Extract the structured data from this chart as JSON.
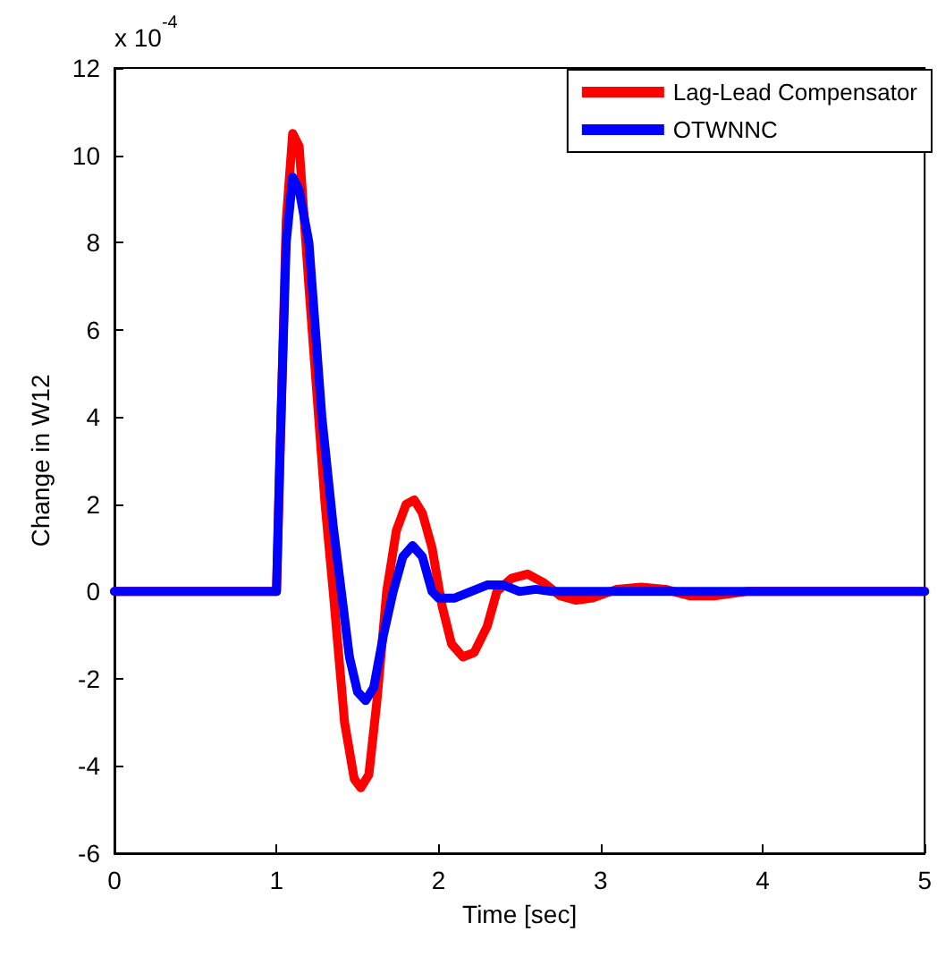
{
  "chart_data": {
    "type": "line",
    "xlabel": "Time [sec]",
    "ylabel": "Change in W12",
    "annotations": [
      "x 10$^{-4}$"
    ],
    "xlim": [
      0,
      5
    ],
    "xticks": [
      0,
      1,
      2,
      3,
      4,
      5
    ],
    "ylim": [
      -6,
      12
    ],
    "yticks": [
      -6,
      -4,
      -2,
      0,
      2,
      4,
      6,
      8,
      10,
      12
    ],
    "grid": false,
    "legend": "top right",
    "marker": "none",
    "line_style": "solid",
    "series": [
      {
        "name": "Lag-Lead Compensator",
        "color": "#ff0000",
        "x": [
          0,
          1.0,
          1.06,
          1.1,
          1.14,
          1.2,
          1.3,
          1.35,
          1.42,
          1.48,
          1.52,
          1.57,
          1.62,
          1.68,
          1.74,
          1.8,
          1.85,
          1.9,
          1.96,
          2.02,
          2.08,
          2.15,
          2.22,
          2.3,
          2.36,
          2.45,
          2.55,
          2.65,
          2.75,
          2.85,
          2.95,
          3.1,
          3.25,
          3.4,
          3.55,
          3.7,
          3.9,
          4.0,
          5
        ],
        "values": [
          0,
          0,
          8.5,
          10.5,
          10.2,
          7,
          2,
          0,
          -3,
          -4.3,
          -4.5,
          -4.2,
          -2.5,
          0,
          1.4,
          2.0,
          2.1,
          1.8,
          1.0,
          -0.3,
          -1.2,
          -1.5,
          -1.4,
          -0.8,
          0,
          0.3,
          0.4,
          0.2,
          -0.1,
          -0.2,
          -0.15,
          0.05,
          0.1,
          0.05,
          -0.1,
          -0.1,
          0,
          0,
          0
        ]
      },
      {
        "name": "OTWNNC",
        "color": "#0000ff",
        "x": [
          0,
          1.0,
          1.02,
          1.06,
          1.1,
          1.14,
          1.2,
          1.28,
          1.35,
          1.4,
          1.45,
          1.5,
          1.55,
          1.6,
          1.66,
          1.72,
          1.78,
          1.84,
          1.9,
          1.96,
          2.0,
          2.1,
          2.2,
          2.3,
          2.4,
          2.5,
          2.6,
          2.7,
          5
        ],
        "values": [
          0,
          0,
          3,
          8,
          9.5,
          9.2,
          8,
          4,
          1.5,
          0,
          -1.5,
          -2.3,
          -2.5,
          -2.2,
          -1,
          0,
          0.8,
          1.05,
          0.8,
          0,
          -0.15,
          -0.15,
          0,
          0.15,
          0.15,
          0,
          0.05,
          0,
          0
        ]
      }
    ]
  }
}
